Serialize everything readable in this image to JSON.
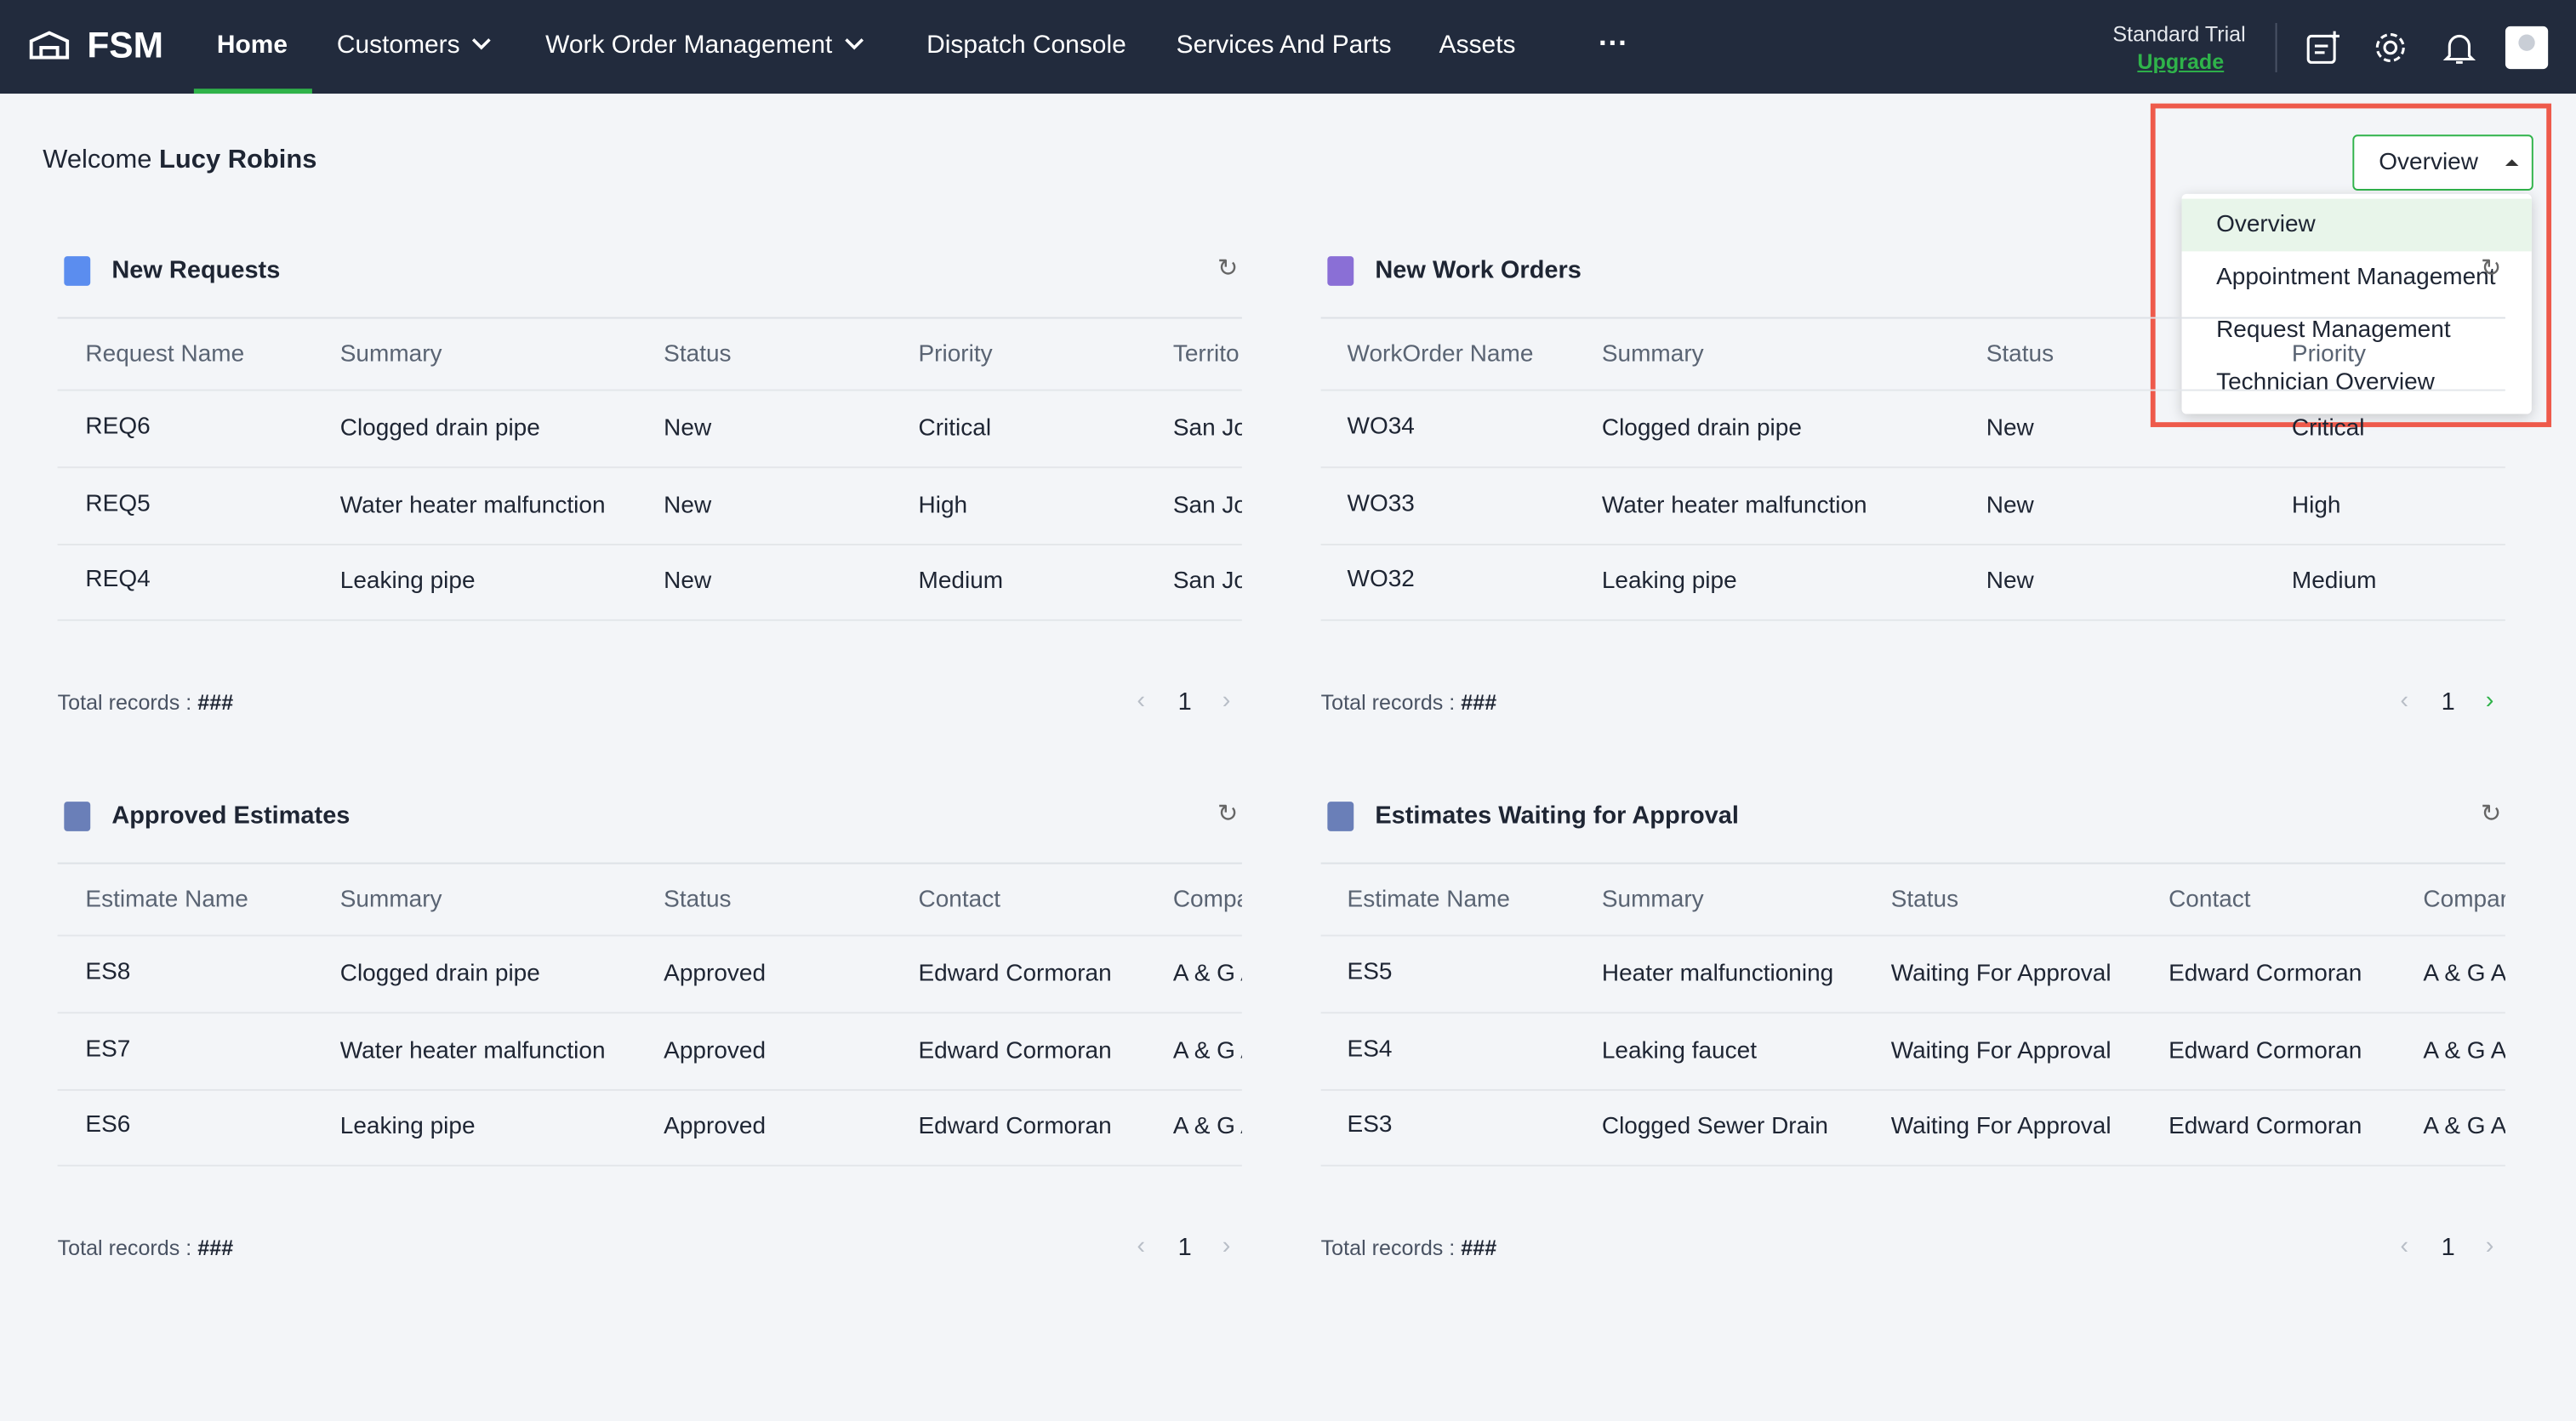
{
  "nav": {
    "brand": "FSM",
    "items": [
      "Home",
      "Customers",
      "Work Order Management",
      "Dispatch Console",
      "Services And Parts",
      "Assets"
    ],
    "plan": "Standard Trial",
    "upgrade": "Upgrade"
  },
  "welcome": {
    "greeting": "Welcome",
    "user": "Lucy Robins"
  },
  "view_select": {
    "selected": "Overview",
    "options": [
      "Overview",
      "Appointment Management",
      "Request Management",
      "Technician Overview"
    ]
  },
  "panels": [
    {
      "title": "New Requests",
      "columns": [
        "Request Name",
        "Summary",
        "Status",
        "Priority",
        "Territo"
      ],
      "rows": [
        [
          "REQ6",
          "Clogged drain pipe",
          "New",
          "Critical",
          "San Jo"
        ],
        [
          "REQ5",
          "Water heater malfunction",
          "New",
          "High",
          "San Jo"
        ],
        [
          "REQ4",
          "Leaking pipe",
          "New",
          "Medium",
          "San Jo"
        ]
      ],
      "total_label": "Total records :",
      "total": "###",
      "page": "1"
    },
    {
      "title": "New Work Orders",
      "columns": [
        "WorkOrder Name",
        "Summary",
        "Status",
        "Priority"
      ],
      "rows": [
        [
          "WO34",
          "Clogged drain pipe",
          "New",
          "Critical"
        ],
        [
          "WO33",
          "Water heater malfunction",
          "New",
          "High"
        ],
        [
          "WO32",
          "Leaking pipe",
          "New",
          "Medium"
        ]
      ],
      "total_label": "Total records :",
      "total": "###",
      "page": "1"
    },
    {
      "title": "Approved Estimates",
      "columns": [
        "Estimate Name",
        "Summary",
        "Status",
        "Contact",
        "Compa"
      ],
      "rows": [
        [
          "ES8",
          "Clogged drain pipe",
          "Approved",
          "Edward Cormoran",
          "A & G A"
        ],
        [
          "ES7",
          "Water heater malfunction",
          "Approved",
          "Edward Cormoran",
          "A & G A"
        ],
        [
          "ES6",
          "Leaking pipe",
          "Approved",
          "Edward Cormoran",
          "A & G A"
        ]
      ],
      "total_label": "Total records :",
      "total": "###",
      "page": "1"
    },
    {
      "title": "Estimates Waiting for Approval",
      "columns": [
        "Estimate Name",
        "Summary",
        "Status",
        "Contact",
        "Compar"
      ],
      "rows": [
        [
          "ES5",
          "Heater malfunctioning",
          "Waiting For Approval",
          "Edward Cormoran",
          "A & G A"
        ],
        [
          "ES4",
          "Leaking faucet",
          "Waiting For Approval",
          "Edward Cormoran",
          "A & G A"
        ],
        [
          "ES3",
          "Clogged Sewer Drain",
          "Waiting For Approval",
          "Edward Cormoran",
          "A & G A"
        ]
      ],
      "total_label": "Total records :",
      "total": "###",
      "page": "1"
    }
  ]
}
